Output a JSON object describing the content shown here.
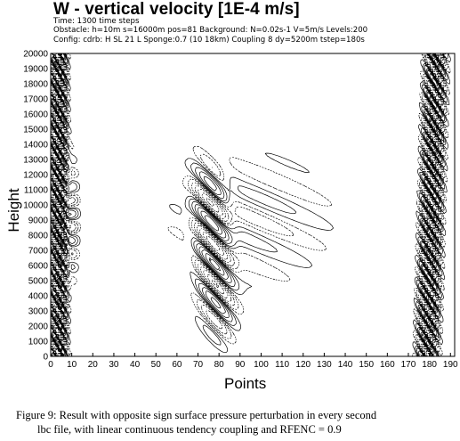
{
  "title": "W - vertical velocity [1E-4 m/s]",
  "info_lines": [
    "Time: 1300 time steps",
    "Obstacle: h=10m s=16000m pos=81 Background: N=0.02s-1 V=5m/s Levels:200",
    "Config: cdrb: H SL 21 L Sponge:0.7 (10 18km) Coupling 8 dy=5200m tstep=180s"
  ],
  "chart_data": {
    "type": "contour",
    "title": "W - vertical velocity [1E-4 m/s]",
    "xlabel": "Points",
    "ylabel": "Height",
    "xlim": [
      0,
      192
    ],
    "ylim": [
      0,
      20000
    ],
    "xticks": [
      0,
      10,
      20,
      30,
      40,
      50,
      60,
      70,
      80,
      90,
      100,
      110,
      120,
      130,
      140,
      150,
      160,
      170,
      180,
      190
    ],
    "yticks": [
      0,
      1000,
      2000,
      3000,
      4000,
      5000,
      6000,
      7000,
      8000,
      9000,
      10000,
      11000,
      12000,
      13000,
      14000,
      15000,
      16000,
      17000,
      18000,
      19000,
      20000
    ],
    "features": [
      {
        "name": "left boundary band",
        "x_range": [
          0,
          10
        ],
        "y_range": [
          0,
          20000
        ]
      },
      {
        "name": "central mountain-wave tilted band",
        "x_range": [
          65,
          100
        ],
        "y_range": [
          0,
          14500
        ]
      },
      {
        "name": "right boundary band",
        "x_range": [
          174,
          187
        ],
        "y_range": [
          0,
          20000
        ]
      }
    ]
  },
  "caption_lines": [
    "Figure 9: Result with opposite sign surface pressure perturbation in every second",
    "lbc file, with linear continuous tendency coupling and RFENC = 0.9"
  ]
}
